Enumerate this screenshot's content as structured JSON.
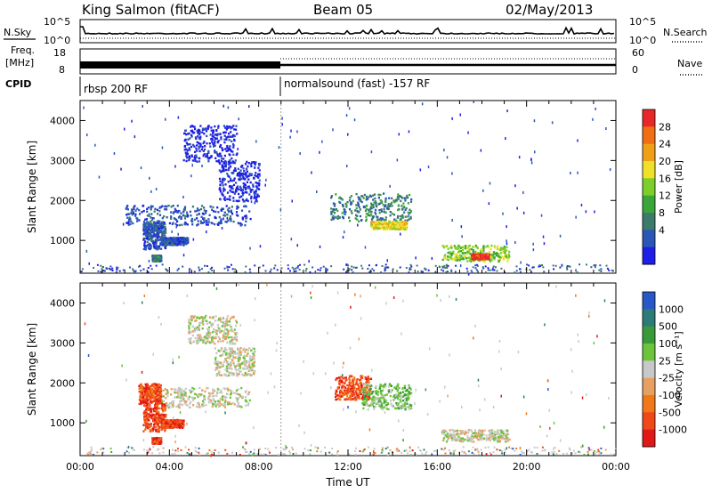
{
  "header": {
    "title": "King Salmon (fitACF)",
    "beam": "Beam 05",
    "date": "02/May/2013"
  },
  "top_panels": {
    "nsky_label": "N.Sky",
    "nsearch_label": "N.Search",
    "count_ticks": [
      "10^5",
      "10^0"
    ],
    "freq_label_1": "Freq.",
    "freq_label_2": "[MHz]",
    "freq_ticks": [
      "18",
      "8"
    ],
    "nave_label": "Nave",
    "nave_ticks": [
      "60",
      "0"
    ],
    "cpid_label": "CPID",
    "cpid_segments": [
      {
        "label": "rbsp 200 RF",
        "start": "00:00"
      },
      {
        "label": "normalsound (fast) -157 RF",
        "start": "09:00"
      }
    ]
  },
  "colors": {
    "power_scale": [
      "#1e1ee6",
      "#2a56b8",
      "#3c7a6a",
      "#3aa63a",
      "#7ccf2a",
      "#f0e028",
      "#f0a018",
      "#f06e14",
      "#e82828"
    ],
    "velocity_scale": [
      "#2858c8",
      "#2c7a7a",
      "#3a9a3a",
      "#6cc43a",
      "#c8c8c8",
      "#e8a060",
      "#f07818",
      "#f04818",
      "#e01818"
    ],
    "background": "#ffffff"
  },
  "chart_data": [
    {
      "type": "heatmap",
      "title": "",
      "xlabel": "Time UT",
      "ylabel": "Slant Range [km]",
      "xlim": [
        "00:00",
        "24:00"
      ],
      "ylim": [
        180,
        4500
      ],
      "x_ticks": [
        "00:00",
        "04:00",
        "08:00",
        "12:00",
        "16:00",
        "20:00",
        "00:00"
      ],
      "y_ticks": [
        1000,
        2000,
        3000,
        4000
      ],
      "colorbar": {
        "label": "Power [dB]",
        "ticks": [
          "4",
          "8",
          "12",
          "16",
          "20",
          "24",
          "28"
        ]
      },
      "features": [
        {
          "t_start": 4.6,
          "t_end": 7.0,
          "range_start": 3000,
          "range_end": 3900,
          "level": 0
        },
        {
          "t_start": 2.0,
          "t_end": 7.6,
          "range_start": 1400,
          "range_end": 1900,
          "level": 1
        },
        {
          "t_start": 6.2,
          "t_end": 8.0,
          "range_start": 2000,
          "range_end": 3000,
          "level": 0
        },
        {
          "t_start": 2.8,
          "t_end": 3.8,
          "range_start": 800,
          "range_end": 1500,
          "level": 1
        },
        {
          "t_start": 3.6,
          "t_end": 4.8,
          "range_start": 900,
          "range_end": 1100,
          "level": 1
        },
        {
          "t_start": 3.2,
          "t_end": 3.6,
          "range_start": 500,
          "range_end": 650,
          "level": 2
        },
        {
          "t_start": 11.2,
          "t_end": 14.8,
          "range_start": 1500,
          "range_end": 2200,
          "level": 2
        },
        {
          "t_start": 13.0,
          "t_end": 14.6,
          "range_start": 1300,
          "range_end": 1500,
          "level": 5
        },
        {
          "t_start": 16.2,
          "t_end": 19.2,
          "range_start": 500,
          "range_end": 900,
          "level": 4
        },
        {
          "t_start": 17.5,
          "t_end": 18.3,
          "range_start": 550,
          "range_end": 680,
          "level": 8
        }
      ]
    },
    {
      "type": "heatmap",
      "title": "",
      "xlabel": "Time UT",
      "ylabel": "Slant Range [km]",
      "xlim": [
        "00:00",
        "24:00"
      ],
      "ylim": [
        180,
        4500
      ],
      "x_ticks": [
        "00:00",
        "04:00",
        "08:00",
        "12:00",
        "16:00",
        "20:00",
        "00:00"
      ],
      "y_ticks": [
        1000,
        2000,
        3000,
        4000
      ],
      "colorbar": {
        "label": "Velocity [m s⁻¹]",
        "ticks": [
          "1000",
          "500",
          "100",
          "25",
          "-25",
          "-100",
          "-500",
          "-1000"
        ]
      },
      "features": [
        {
          "t_start": 4.8,
          "t_end": 7.0,
          "range_start": 3000,
          "range_end": 3700,
          "level": 4
        },
        {
          "t_start": 3.6,
          "t_end": 7.6,
          "range_start": 1400,
          "range_end": 1900,
          "level": 4
        },
        {
          "t_start": 6.0,
          "t_end": 7.8,
          "range_start": 2200,
          "range_end": 2900,
          "level": 4
        },
        {
          "t_start": 2.6,
          "t_end": 3.6,
          "range_start": 1500,
          "range_end": 2000,
          "level": 7
        },
        {
          "t_start": 2.8,
          "t_end": 3.8,
          "range_start": 800,
          "range_end": 1500,
          "level": 7
        },
        {
          "t_start": 3.6,
          "t_end": 4.6,
          "range_start": 900,
          "range_end": 1100,
          "level": 7
        },
        {
          "t_start": 3.2,
          "t_end": 3.6,
          "range_start": 500,
          "range_end": 650,
          "level": 7
        },
        {
          "t_start": 11.4,
          "t_end": 13.0,
          "range_start": 1600,
          "range_end": 2200,
          "level": 7
        },
        {
          "t_start": 12.6,
          "t_end": 14.8,
          "range_start": 1350,
          "range_end": 2000,
          "level": 3
        },
        {
          "t_start": 16.2,
          "t_end": 19.2,
          "range_start": 550,
          "range_end": 850,
          "level": 4
        }
      ]
    }
  ]
}
